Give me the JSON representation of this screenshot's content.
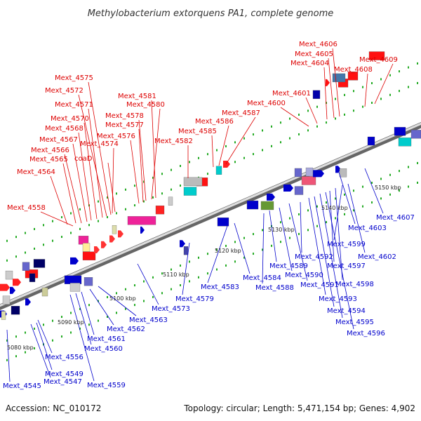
{
  "title": "Methylobacterium extorquens PA1, complete genome",
  "footer": {
    "accession": "Accession: NC_010172",
    "summary": "Topology: circular; Length: 5,471,154 bp; Genes: 4,902"
  },
  "colors": {
    "forward_label": "#dd0000",
    "reverse_label": "#0000cc",
    "backbone": "#9a9a9a",
    "tick": "#22aa22"
  },
  "kbp_ticks": [
    "5080 kbp",
    "5090 kbp",
    "5100 kbp",
    "5110 kbp",
    "5120 kbp",
    "5130 kbp",
    "5140 kbp",
    "5150 kbp"
  ],
  "forward_labels": [
    "Mext_4558",
    "Mext_4564",
    "Mext_4565",
    "Mext_4566",
    "Mext_4567",
    "Mext_4568",
    "Mext_4570",
    "Mext_4571",
    "Mext_4572",
    "Mext_4575",
    "Mext_4574",
    "coaD",
    "Mext_4576",
    "Mext_4577",
    "Mext_4578",
    "Mext_4580",
    "Mext_4581",
    "Mext_4582",
    "Mext_4585",
    "Mext_4586",
    "Mext_4587",
    "Mext_4600",
    "Mext_4601",
    "Mext_4604",
    "Mext_4605",
    "Mext_4606",
    "Mext_4608",
    "Mext_4609"
  ],
  "reverse_labels": [
    "Mext_4545",
    "Mext_4547",
    "Mext_4549",
    "Mext_4556",
    "Mext_4559",
    "Mext_4560",
    "Mext_4561",
    "Mext_4562",
    "Mext_4563",
    "Mext_4573",
    "Mext_4579",
    "Mext_4583",
    "Mext_4584",
    "Mext_4588",
    "Mext_4589",
    "Mext_4590",
    "Mext_4591",
    "Mext_4592",
    "Mext_4593",
    "Mext_4594",
    "Mext_4595",
    "Mext_4596",
    "Mext_4597",
    "Mext_4598",
    "Mext_4599",
    "Mext_4602",
    "Mext_4603",
    "Mext_4607"
  ]
}
